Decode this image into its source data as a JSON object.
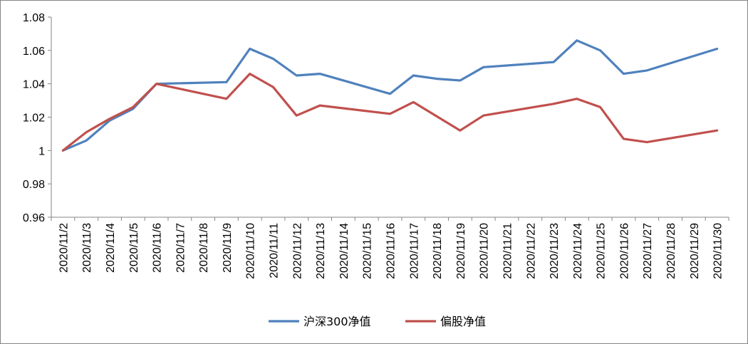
{
  "chart_data": {
    "type": "line",
    "title": "",
    "xlabel": "",
    "ylabel": "",
    "ylim": [
      0.96,
      1.08
    ],
    "yticks": [
      "0.96",
      "0.98",
      "1",
      "1.02",
      "1.04",
      "1.06",
      "1.08"
    ],
    "ytick_values": [
      0.96,
      0.98,
      1.0,
      1.02,
      1.04,
      1.06,
      1.08
    ],
    "grid": false,
    "legend": "bottom",
    "categories": [
      "2020/11/2",
      "2020/11/3",
      "2020/11/4",
      "2020/11/5",
      "2020/11/6",
      "2020/11/7",
      "2020/11/8",
      "2020/11/9",
      "2020/11/10",
      "2020/11/11",
      "2020/11/12",
      "2020/11/13",
      "2020/11/14",
      "2020/11/15",
      "2020/11/16",
      "2020/11/17",
      "2020/11/18",
      "2020/11/19",
      "2020/11/20",
      "2020/11/21",
      "2020/11/22",
      "2020/11/23",
      "2020/11/24",
      "2020/11/25",
      "2020/11/26",
      "2020/11/27",
      "2020/11/28",
      "2020/11/29",
      "2020/11/30"
    ],
    "series": [
      {
        "name": "沪深300净值",
        "color": "#4F81BD",
        "values": [
          1.0,
          1.006,
          1.018,
          1.025,
          1.04,
          null,
          null,
          1.041,
          1.061,
          1.055,
          1.045,
          1.046,
          null,
          null,
          1.034,
          1.045,
          1.043,
          1.042,
          1.05,
          null,
          null,
          1.053,
          1.066,
          1.06,
          1.046,
          1.048,
          null,
          null,
          1.061
        ]
      },
      {
        "name": "偏股净值",
        "color": "#C0504D",
        "values": [
          1.0,
          1.011,
          1.019,
          1.026,
          1.04,
          null,
          null,
          1.031,
          1.046,
          1.038,
          1.021,
          1.027,
          null,
          null,
          1.022,
          1.029,
          null,
          1.012,
          1.021,
          null,
          null,
          1.028,
          1.031,
          1.026,
          1.007,
          1.005,
          null,
          null,
          1.012
        ]
      }
    ]
  }
}
